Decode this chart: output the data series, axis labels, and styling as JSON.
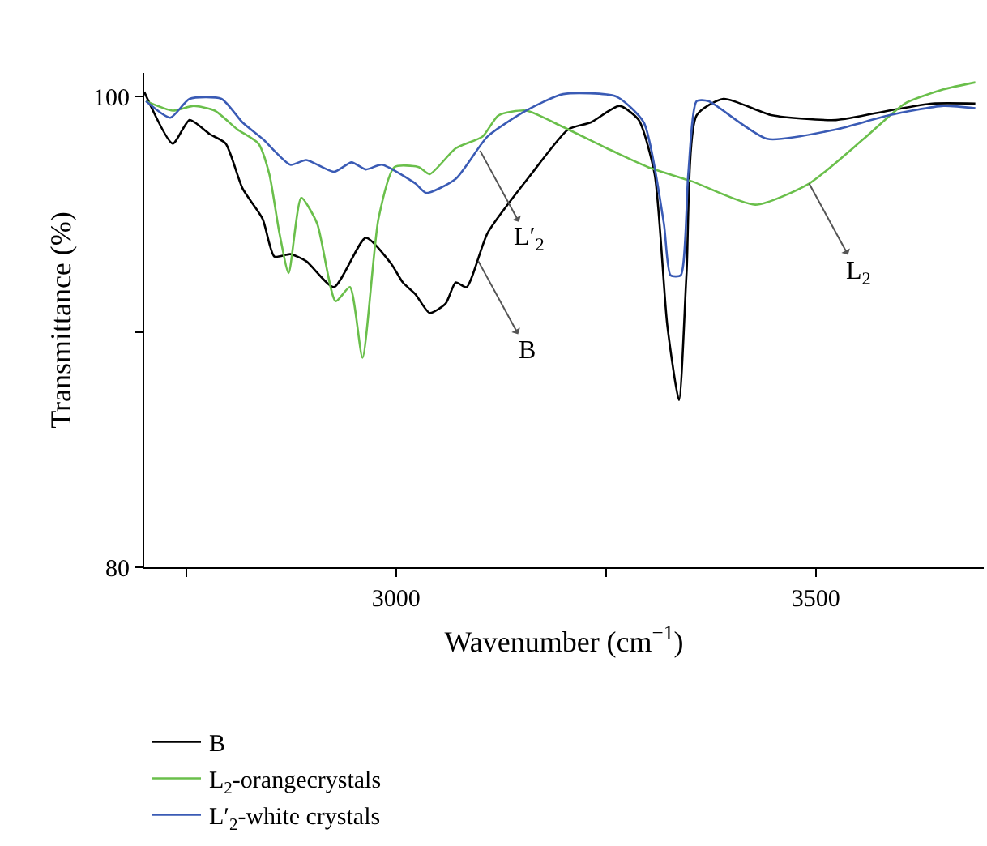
{
  "chart_data": {
    "type": "line",
    "xlabel": "Wavenumber (cm$^{−1}$)",
    "ylabel": "Transmittance (%)",
    "xlim": [
      2700,
      3700
    ],
    "ylim": [
      80,
      101
    ],
    "xticks": [
      {
        "value": 2750,
        "label": null
      },
      3000,
      {
        "value": 3250,
        "label": null
      },
      3500
    ],
    "yticks": [
      80,
      {
        "value": 90,
        "label": null
      },
      100
    ],
    "legend": "bottom left",
    "marker": "none",
    "line_style": "solid",
    "series": [
      {
        "name": "B",
        "color": "#000000",
        "x": [
          2700,
          2734,
          2754,
          2778,
          2797,
          2817,
          2841,
          2855,
          2874,
          2893,
          2926,
          2964,
          2994,
          3008,
          3023,
          3040,
          3059,
          3071,
          3084,
          3109,
          3161,
          3205,
          3232,
          3266,
          3289,
          3308,
          3323,
          3337,
          3346,
          3358,
          3390,
          3448,
          3524,
          3587,
          3639,
          3690
        ],
        "values": [
          100.2,
          98.0,
          99.0,
          98.4,
          98.0,
          96.1,
          94.8,
          93.2,
          93.3,
          93.0,
          91.9,
          94.0,
          92.9,
          92.1,
          91.6,
          90.8,
          91.2,
          92.1,
          91.9,
          94.2,
          96.7,
          98.6,
          98.9,
          99.6,
          99.0,
          96.7,
          90.3,
          87.1,
          92.5,
          99.2,
          99.9,
          99.2,
          99.0,
          99.4,
          99.7,
          99.7
        ]
      },
      {
        "name": "L$_{2}$-orangecrystals",
        "color": "#6abf4b",
        "x": [
          2702,
          2734,
          2759,
          2784,
          2811,
          2836,
          2849,
          2861,
          2872,
          2887,
          2906,
          2928,
          2945,
          2960,
          2979,
          2998,
          3027,
          3040,
          3071,
          3103,
          3122,
          3155,
          3199,
          3251,
          3300,
          3352,
          3428,
          3492,
          3557,
          3606,
          3652,
          3690
        ],
        "values": [
          99.8,
          99.4,
          99.6,
          99.4,
          98.6,
          98.0,
          96.7,
          94.2,
          92.5,
          95.7,
          94.6,
          91.3,
          91.9,
          88.9,
          94.8,
          97.0,
          97.0,
          96.7,
          97.8,
          98.3,
          99.2,
          99.4,
          98.7,
          97.8,
          97.0,
          96.4,
          95.4,
          96.3,
          98.2,
          99.7,
          100.3,
          100.6
        ]
      },
      {
        "name": "L′$_{2}$-white crystals",
        "color": "#3a5bb5",
        "x": [
          2702,
          2731,
          2754,
          2792,
          2817,
          2841,
          2874,
          2893,
          2926,
          2947,
          2964,
          2983,
          3023,
          3036,
          3071,
          3109,
          3155,
          3199,
          3262,
          3295,
          3319,
          3327,
          3339,
          3348,
          3358,
          3372,
          3442,
          3524,
          3587,
          3652,
          3690
        ],
        "values": [
          99.8,
          99.1,
          99.9,
          99.9,
          98.9,
          98.2,
          97.1,
          97.3,
          96.8,
          97.2,
          96.9,
          97.1,
          96.3,
          95.9,
          96.5,
          98.3,
          99.4,
          100.1,
          100.0,
          98.9,
          94.6,
          92.4,
          92.4,
          96.7,
          99.8,
          99.8,
          98.2,
          98.6,
          99.2,
          99.6,
          99.5
        ]
      }
    ],
    "annotations": [
      {
        "text": "L′$_{2}$",
        "x": 3100,
        "y": 97.7
      },
      {
        "text": "B",
        "x": 3098,
        "y": 93.0
      },
      {
        "text": "L$_{2}$",
        "x": 3492,
        "y": 96.3
      }
    ]
  }
}
